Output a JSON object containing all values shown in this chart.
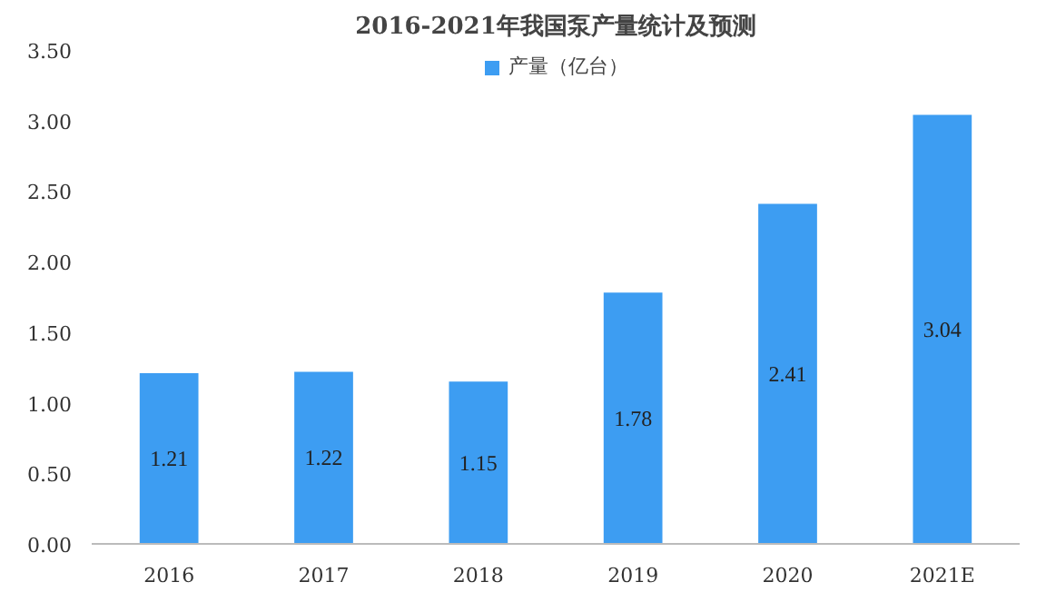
{
  "chart_data": {
    "type": "bar",
    "title": "2016-2021年我国泵产量统计及预测",
    "categories": [
      "2016",
      "2017",
      "2018",
      "2019",
      "2020",
      "2021E"
    ],
    "series": [
      {
        "name": "产量（亿台）",
        "color": "#3d9df2",
        "values": [
          1.21,
          1.22,
          1.15,
          1.78,
          2.41,
          3.04
        ]
      }
    ],
    "ylim": [
      0,
      3.5
    ],
    "yticks": [
      {
        "value": 0,
        "label": "0.00"
      },
      {
        "value": 0.5,
        "label": "0.50"
      },
      {
        "value": 1,
        "label": "1.00"
      },
      {
        "value": 1.5,
        "label": "1.50"
      },
      {
        "value": 2,
        "label": "2.00"
      },
      {
        "value": 2.5,
        "label": "2.50"
      },
      {
        "value": 3,
        "label": "3.00"
      },
      {
        "value": 3.5,
        "label": "3.50"
      }
    ],
    "grid": false,
    "legend": "top",
    "data_labels": true
  }
}
